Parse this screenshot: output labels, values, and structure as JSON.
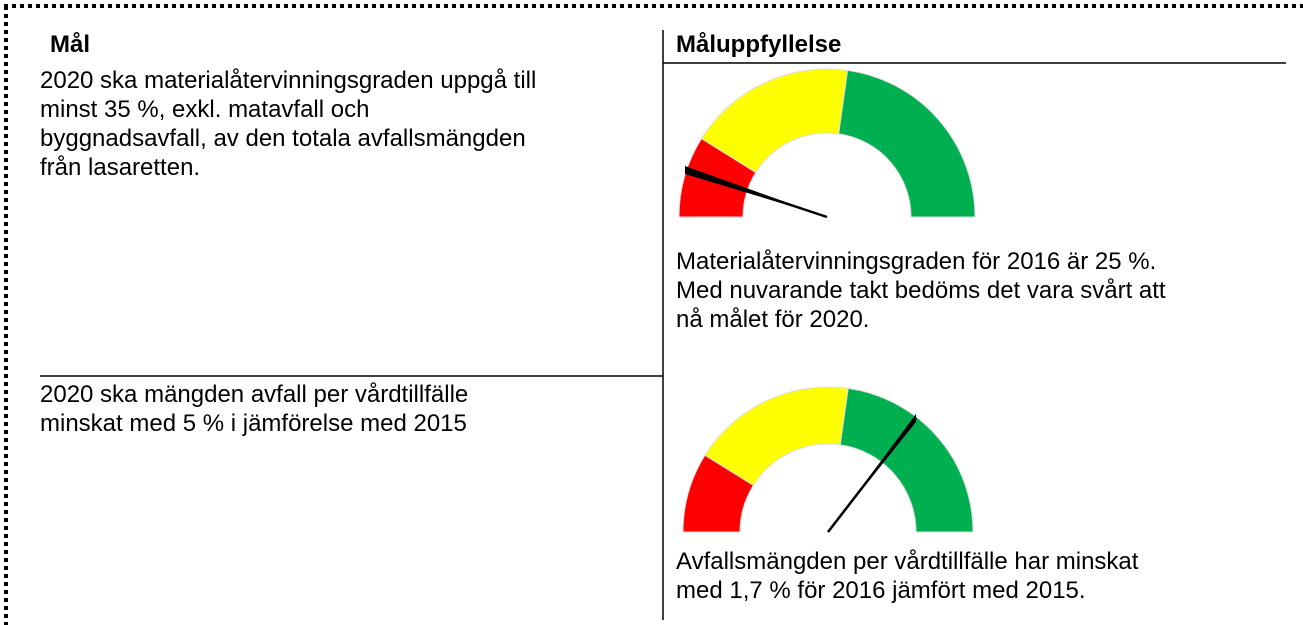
{
  "table": {
    "header": [
      "Mål",
      "Måluppfyllelse"
    ],
    "rows": [
      {
        "goal": [
          "2020 ska materialåtervinningsgraden uppgå till",
          "minst 35 %, exkl. matavfall och",
          "byggnadsavfall, av den totala avfallsmängden",
          "från lasaretten."
        ],
        "status": [
          "Materialåtervinningsgraden för 2016 är 25 %.",
          "Med nuvarande takt bedöms det vara svårt att",
          "nå målet för 2020."
        ]
      },
      {
        "goal": [
          "2020 ska mängden avfall per vårdtillfälle",
          "minskat med 5 % i jämförelse med 2015"
        ],
        "status": [
          "Avfallsmängden per vårdtillfälle har minskat",
          "med 1,7 % för 2016 jämfört med 2015."
        ]
      }
    ]
  }
}
